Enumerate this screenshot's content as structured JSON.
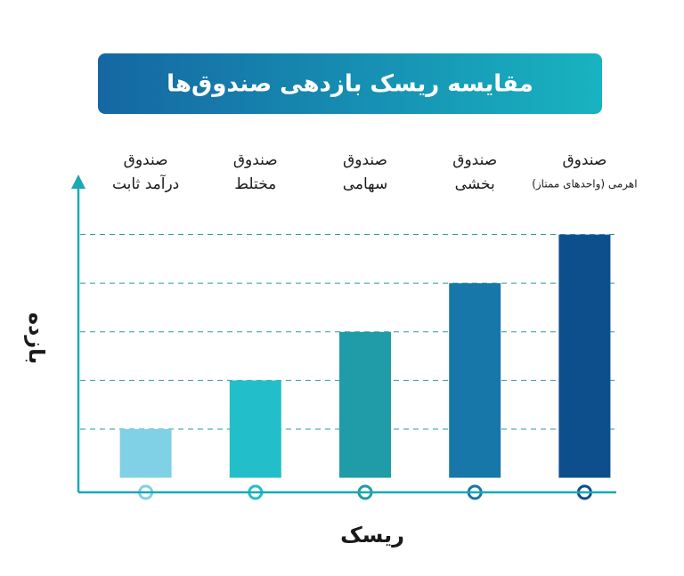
{
  "chart_data": {
    "type": "bar",
    "title": "مقایسه ریسک بازدهی صندوق‌ها",
    "categories": [
      [
        "صندوق",
        "درآمد ثابت"
      ],
      [
        "صندوق",
        "مختلط"
      ],
      [
        "صندوق",
        "سهامی"
      ],
      [
        "صندوق",
        "بخشی"
      ],
      [
        "صندوق",
        "اهرمی (واحدهای ممتاز)"
      ]
    ],
    "values": [
      1,
      2,
      3,
      4,
      5
    ],
    "colors": [
      "#80d0e6",
      "#22bfca",
      "#1f9ca8",
      "#1877a9",
      "#0d4f8d"
    ],
    "x_label": "ریسک",
    "y_label": "بازده",
    "ylim": [
      -0.3,
      6.2
    ],
    "yticks": [
      1,
      2,
      3,
      4,
      5
    ],
    "grid": true
  }
}
